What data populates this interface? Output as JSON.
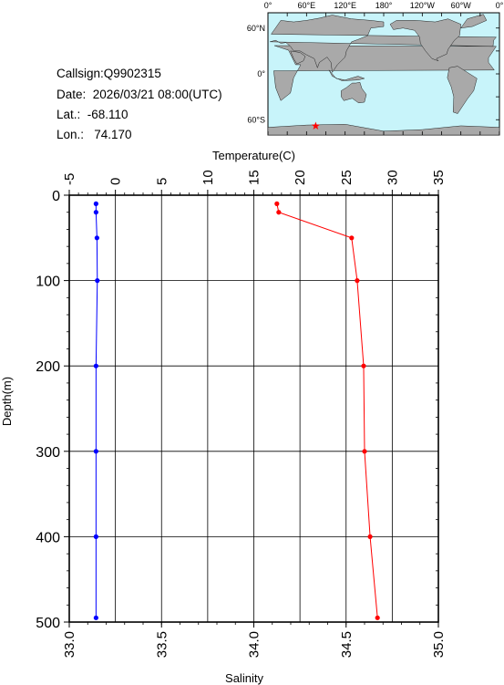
{
  "info": {
    "callsign": "Callsign:Q9902315",
    "date": "Date:  2026/03/21 08:00(UTC)",
    "lat": "Lat.:  -68.110",
    "lon": "Lon.:   74.170"
  },
  "map": {
    "lon_labels": [
      "0°",
      "60°E",
      "120°E",
      "180°",
      "120°W",
      "60°W",
      "0°"
    ],
    "lat_labels": [
      "60°N",
      "0°",
      "60°S"
    ],
    "station": {
      "lon": 74.17,
      "lat": -68.11
    },
    "colors": {
      "ocean": "#c8f4fa",
      "land": "#a9a9a9",
      "marker": "#ff0000"
    }
  },
  "chart_data": {
    "type": "line",
    "ylabel": "Depth(m)",
    "ylim": [
      500,
      0
    ],
    "yticks": [
      0,
      100,
      200,
      300,
      400,
      500
    ],
    "top_axis": {
      "label": "Temperature(C)",
      "range": [
        -5,
        35
      ],
      "ticks": [
        -5,
        0,
        5,
        10,
        15,
        20,
        25,
        30,
        35
      ]
    },
    "bottom_axis": {
      "label": "Salinity",
      "range": [
        33.0,
        35.0
      ],
      "ticks": [
        "33.0",
        "33.5",
        "34.0",
        "34.5",
        "35.0"
      ]
    },
    "grid": true,
    "series": [
      {
        "axis": "top",
        "color": "#ff0000",
        "points": [
          {
            "x": 17.5,
            "depth": 10
          },
          {
            "x": 17.7,
            "depth": 20
          },
          {
            "x": 25.6,
            "depth": 50
          },
          {
            "x": 26.2,
            "depth": 100
          },
          {
            "x": 26.9,
            "depth": 200
          },
          {
            "x": 27.0,
            "depth": 300
          },
          {
            "x": 27.6,
            "depth": 400
          },
          {
            "x": 28.4,
            "depth": 495
          }
        ]
      },
      {
        "axis": "bottom",
        "color": "#0000ff",
        "points": [
          {
            "x": 33.145,
            "depth": 10
          },
          {
            "x": 33.145,
            "depth": 20
          },
          {
            "x": 33.15,
            "depth": 50
          },
          {
            "x": 33.152,
            "depth": 100
          },
          {
            "x": 33.145,
            "depth": 200
          },
          {
            "x": 33.145,
            "depth": 300
          },
          {
            "x": 33.145,
            "depth": 400
          },
          {
            "x": 33.145,
            "depth": 495
          }
        ]
      }
    ]
  }
}
